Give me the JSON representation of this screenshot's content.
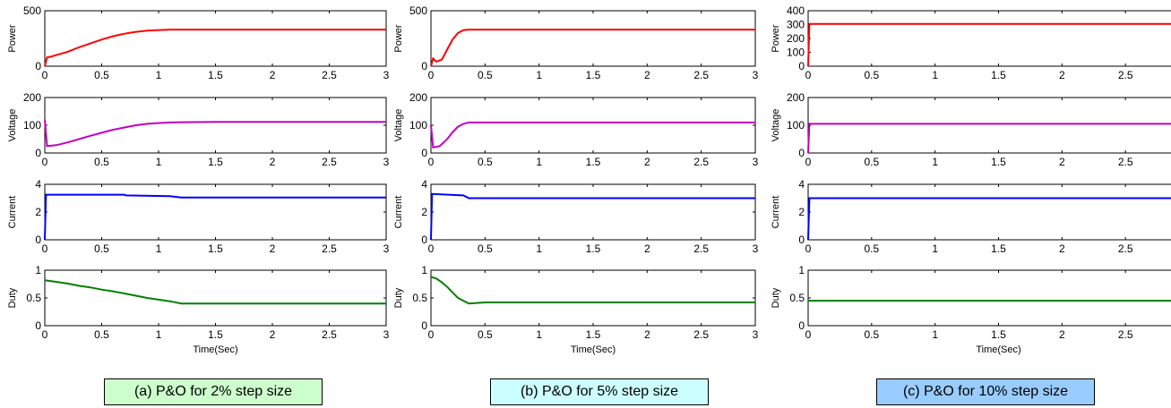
{
  "figure": {
    "x_ticks": [
      "0",
      "0.5",
      "1",
      "1.5",
      "2",
      "2.5",
      "3"
    ],
    "xlabel": "Time(Sec)",
    "panels": [
      {
        "id": "a",
        "caption": "(a) P&O for 2% step size",
        "caption_color": "#ccffcc"
      },
      {
        "id": "b",
        "caption": "(b) P&O for 5% step size",
        "caption_color": "#ccffff"
      },
      {
        "id": "c",
        "caption": "(c) P&O for 10% step size",
        "caption_color": "#99ccff"
      }
    ]
  },
  "chart_data": [
    {
      "type": "line",
      "panel": "a",
      "ylabel": "Power",
      "xlim": [
        0,
        3
      ],
      "ylim": [
        0,
        500
      ],
      "yticks": [
        "0",
        "500"
      ],
      "color": "#ff0000",
      "series": [
        {
          "x": [
            0,
            0.02,
            0.05,
            0.1,
            0.2,
            0.3,
            0.4,
            0.5,
            0.6,
            0.7,
            0.8,
            0.9,
            1.0,
            1.1,
            1.2,
            1.5,
            2.0,
            2.5,
            3.0
          ],
          "y": [
            0,
            80,
            85,
            100,
            130,
            170,
            205,
            240,
            270,
            293,
            310,
            320,
            326,
            330,
            330,
            330,
            330,
            330,
            330
          ]
        }
      ]
    },
    {
      "type": "line",
      "panel": "a",
      "ylabel": "Voltage",
      "xlim": [
        0,
        3
      ],
      "ylim": [
        0,
        200
      ],
      "yticks": [
        "0",
        "100",
        "200"
      ],
      "color": "#c000c0",
      "series": [
        {
          "x": [
            0,
            0.02,
            0.1,
            0.2,
            0.3,
            0.4,
            0.5,
            0.6,
            0.7,
            0.8,
            0.9,
            1.0,
            1.1,
            1.2,
            1.5,
            2.0,
            2.5,
            3.0
          ],
          "y": [
            120,
            25,
            28,
            38,
            50,
            62,
            73,
            84,
            92,
            100,
            105,
            108,
            110,
            111,
            112,
            112,
            112,
            112
          ]
        }
      ]
    },
    {
      "type": "line",
      "panel": "a",
      "ylabel": "Current",
      "xlim": [
        0,
        3
      ],
      "ylim": [
        0,
        4
      ],
      "yticks": [
        "0",
        "2",
        "4"
      ],
      "color": "#0000ff",
      "series": [
        {
          "x": [
            0,
            0.01,
            0.7,
            0.71,
            1.1,
            1.2,
            1.5,
            2.0,
            2.5,
            3.0
          ],
          "y": [
            0,
            3.25,
            3.25,
            3.2,
            3.15,
            3.05,
            3.05,
            3.05,
            3.05,
            3.05
          ]
        }
      ]
    },
    {
      "type": "line",
      "panel": "a",
      "ylabel": "Duty",
      "xlim": [
        0,
        3
      ],
      "ylim": [
        0,
        1
      ],
      "yticks": [
        "0",
        "0.5",
        "1"
      ],
      "color": "#008000",
      "series": [
        {
          "x": [
            0,
            0.1,
            0.2,
            0.3,
            0.4,
            0.5,
            0.6,
            0.7,
            0.8,
            0.9,
            1.0,
            1.1,
            1.2,
            1.5,
            2.0,
            2.5,
            3.0
          ],
          "y": [
            0.82,
            0.79,
            0.76,
            0.72,
            0.69,
            0.65,
            0.62,
            0.58,
            0.54,
            0.5,
            0.47,
            0.44,
            0.4,
            0.4,
            0.4,
            0.4,
            0.4
          ]
        }
      ]
    },
    {
      "type": "line",
      "panel": "b",
      "ylabel": "Power",
      "xlim": [
        0,
        3
      ],
      "ylim": [
        0,
        500
      ],
      "yticks": [
        "0",
        "500"
      ],
      "color": "#ff0000",
      "series": [
        {
          "x": [
            0,
            0.02,
            0.05,
            0.1,
            0.15,
            0.2,
            0.25,
            0.3,
            0.35,
            0.5,
            1.0,
            1.5,
            2.0,
            2.5,
            3.0
          ],
          "y": [
            0,
            70,
            40,
            60,
            150,
            240,
            300,
            325,
            330,
            330,
            330,
            330,
            330,
            330,
            330
          ]
        }
      ]
    },
    {
      "type": "line",
      "panel": "b",
      "ylabel": "Voltage",
      "xlim": [
        0,
        3
      ],
      "ylim": [
        0,
        200
      ],
      "yticks": [
        "0",
        "100",
        "200"
      ],
      "color": "#c000c0",
      "series": [
        {
          "x": [
            0,
            0.02,
            0.08,
            0.15,
            0.2,
            0.25,
            0.3,
            0.35,
            0.5,
            1.0,
            1.5,
            2.0,
            2.5,
            3.0
          ],
          "y": [
            100,
            20,
            25,
            50,
            75,
            95,
            105,
            110,
            110,
            110,
            110,
            110,
            110,
            110
          ]
        }
      ]
    },
    {
      "type": "line",
      "panel": "b",
      "ylabel": "Current",
      "xlim": [
        0,
        3
      ],
      "ylim": [
        0,
        4
      ],
      "yticks": [
        "0",
        "2",
        "4"
      ],
      "color": "#0000ff",
      "series": [
        {
          "x": [
            0,
            0.01,
            0.3,
            0.35,
            0.5,
            1.0,
            1.5,
            2.0,
            2.5,
            3.0
          ],
          "y": [
            0,
            3.3,
            3.2,
            3.0,
            3.0,
            3.0,
            3.0,
            3.0,
            3.0,
            3.0
          ]
        }
      ]
    },
    {
      "type": "line",
      "panel": "b",
      "ylabel": "Duty",
      "xlim": [
        0,
        3
      ],
      "ylim": [
        0,
        1
      ],
      "yticks": [
        "0",
        "0.5",
        "1"
      ],
      "color": "#008000",
      "series": [
        {
          "x": [
            0,
            0.05,
            0.1,
            0.15,
            0.2,
            0.25,
            0.3,
            0.35,
            0.5,
            1.0,
            1.5,
            2.0,
            2.5,
            3.0
          ],
          "y": [
            0.88,
            0.85,
            0.78,
            0.7,
            0.6,
            0.5,
            0.45,
            0.4,
            0.42,
            0.42,
            0.42,
            0.42,
            0.42,
            0.42
          ]
        }
      ]
    },
    {
      "type": "line",
      "panel": "c",
      "ylabel": "Power",
      "xlim": [
        0,
        3
      ],
      "ylim": [
        0,
        400
      ],
      "yticks": [
        "0",
        "100",
        "200",
        "300",
        "400"
      ],
      "color": "#ff0000",
      "series": [
        {
          "x": [
            0,
            0.01,
            0.5,
            1.0,
            1.5,
            2.0,
            2.5,
            3.0
          ],
          "y": [
            0,
            305,
            305,
            305,
            305,
            305,
            305,
            305
          ]
        }
      ]
    },
    {
      "type": "line",
      "panel": "c",
      "ylabel": "Voltage",
      "xlim": [
        0,
        3
      ],
      "ylim": [
        0,
        200
      ],
      "yticks": [
        "0",
        "100",
        "200"
      ],
      "color": "#c000c0",
      "series": [
        {
          "x": [
            0,
            0.01,
            0.5,
            1.0,
            1.5,
            2.0,
            2.5,
            3.0
          ],
          "y": [
            0,
            105,
            105,
            105,
            105,
            105,
            105,
            105
          ]
        }
      ]
    },
    {
      "type": "line",
      "panel": "c",
      "ylabel": "Current",
      "xlim": [
        0,
        3
      ],
      "ylim": [
        0,
        4
      ],
      "yticks": [
        "0",
        "2",
        "4"
      ],
      "color": "#0000ff",
      "series": [
        {
          "x": [
            0,
            0.01,
            0.5,
            1.0,
            1.5,
            2.0,
            2.5,
            3.0
          ],
          "y": [
            0,
            3.0,
            3.0,
            3.0,
            3.0,
            3.0,
            3.0,
            3.0
          ]
        }
      ]
    },
    {
      "type": "line",
      "panel": "c",
      "ylabel": "Duty",
      "xlim": [
        0,
        3
      ],
      "ylim": [
        0,
        1
      ],
      "yticks": [
        "0",
        "0.5",
        "1"
      ],
      "color": "#008000",
      "series": [
        {
          "x": [
            0,
            0.5,
            1.0,
            1.5,
            2.0,
            2.5,
            3.0
          ],
          "y": [
            0.45,
            0.45,
            0.45,
            0.45,
            0.45,
            0.45,
            0.45
          ]
        }
      ]
    }
  ]
}
